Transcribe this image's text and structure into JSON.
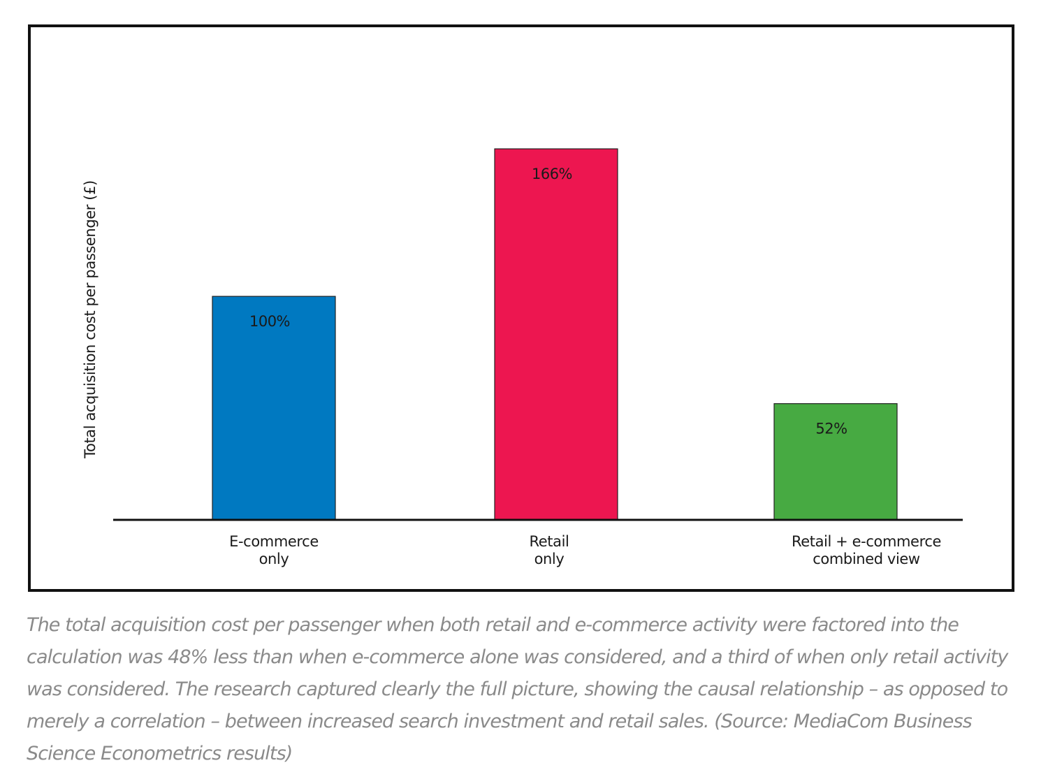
{
  "chart_data": {
    "type": "bar",
    "ylabel": "Total acquisition cost per passenger (£)",
    "xlabel": "",
    "categories": [
      [
        "E-commerce",
        "only"
      ],
      [
        "Retail",
        "only"
      ],
      [
        "Retail + e-commerce",
        "combined view"
      ]
    ],
    "values": [
      100,
      166,
      52
    ],
    "value_labels": [
      "100%",
      "166%",
      "52%"
    ],
    "colors": [
      "#0079C1",
      "#ED1650",
      "#47AA42"
    ],
    "ylim": [
      0,
      180
    ],
    "grid": false,
    "legend": "none"
  },
  "caption": "The total acquisition cost per passenger when both retail and e-commerce activity were factored into the calculation was 48% less than when e-commerce alone was considered, and a third of when only retail activity was considered. The research captured clearly the full picture, showing the causal relationship – as opposed to merely a correlation – between increased search investment and retail sales. (Source: MediaCom Business Science Econometrics results)"
}
